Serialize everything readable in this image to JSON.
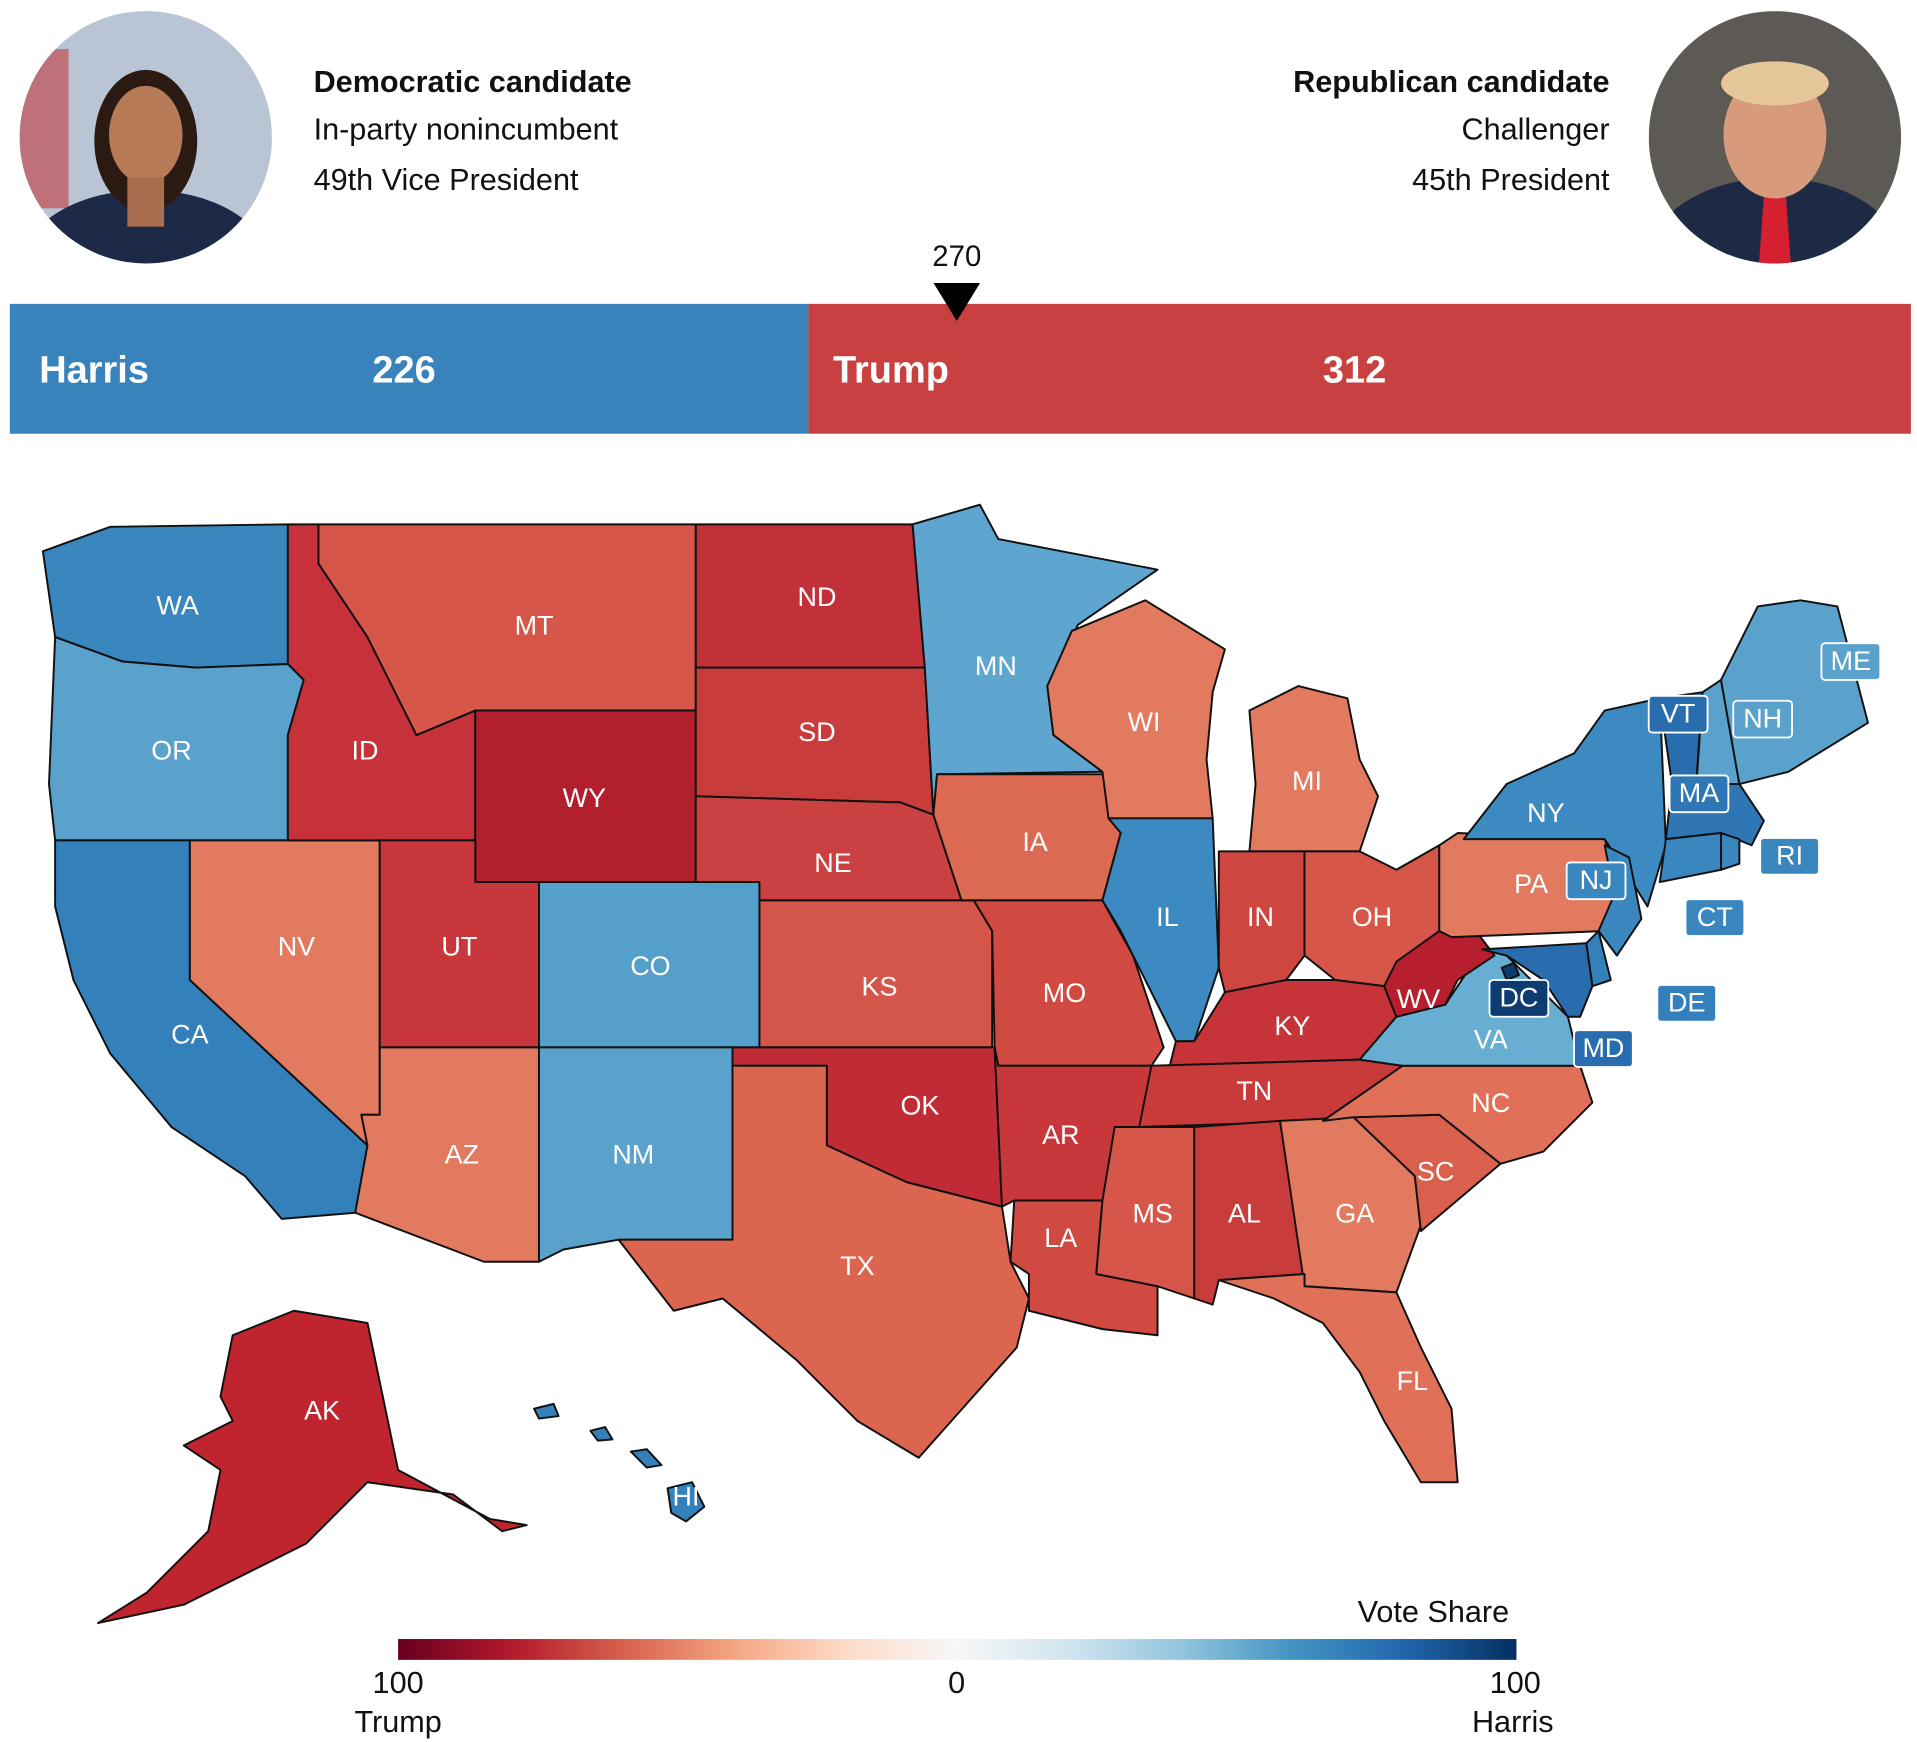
{
  "header": {
    "dem": {
      "party": "Democratic candidate",
      "status": "In-party nonincumbent",
      "office": "49th Vice President"
    },
    "rep": {
      "party": "Republican candidate",
      "status": "Challenger",
      "office": "45th President"
    }
  },
  "electoral_bar": {
    "threshold_label": "270",
    "threshold": 270,
    "total": 538,
    "dem": {
      "name": "Harris",
      "votes": "226",
      "value": 226,
      "color": "#3983bd"
    },
    "rep": {
      "name": "Trump",
      "votes": "312",
      "value": 312,
      "color": "#c84040"
    }
  },
  "legend": {
    "title": "Vote Share",
    "left_value": "100",
    "mid_value": "0",
    "right_value": "100",
    "left_name": "Trump",
    "right_name": "Harris",
    "stops": [
      "#67001f",
      "#b2182b",
      "#d6604d",
      "#f4a582",
      "#fddbc7",
      "#f7f7f7",
      "#d1e5f0",
      "#92c5de",
      "#4393c3",
      "#2166ac",
      "#053061"
    ]
  },
  "states": [
    {
      "abbr": "WA",
      "color": "#3a86bf"
    },
    {
      "abbr": "OR",
      "color": "#5aa2cc"
    },
    {
      "abbr": "CA",
      "color": "#3480bb"
    },
    {
      "abbr": "NV",
      "color": "#e27a60"
    },
    {
      "abbr": "ID",
      "color": "#c7323a"
    },
    {
      "abbr": "MT",
      "color": "#d6574a"
    },
    {
      "abbr": "WY",
      "color": "#b21f2d"
    },
    {
      "abbr": "UT",
      "color": "#c7373b"
    },
    {
      "abbr": "CO",
      "color": "#559fcb"
    },
    {
      "abbr": "AZ",
      "color": "#e27a60"
    },
    {
      "abbr": "NM",
      "color": "#5aa2cc"
    },
    {
      "abbr": "ND",
      "color": "#c2303a"
    },
    {
      "abbr": "SD",
      "color": "#c93c3c"
    },
    {
      "abbr": "NE",
      "color": "#cb4040"
    },
    {
      "abbr": "KS",
      "color": "#d4554a"
    },
    {
      "abbr": "OK",
      "color": "#c02b35"
    },
    {
      "abbr": "TX",
      "color": "#dc654f"
    },
    {
      "abbr": "MN",
      "color": "#5ea6cf"
    },
    {
      "abbr": "IA",
      "color": "#dc6a52"
    },
    {
      "abbr": "MO",
      "color": "#d04a42"
    },
    {
      "abbr": "AR",
      "color": "#c8383b"
    },
    {
      "abbr": "LA",
      "color": "#d04a42"
    },
    {
      "abbr": "WI",
      "color": "#e27a60"
    },
    {
      "abbr": "IL",
      "color": "#3d8ac2"
    },
    {
      "abbr": "MI",
      "color": "#e27a60"
    },
    {
      "abbr": "IN",
      "color": "#cf4641"
    },
    {
      "abbr": "OH",
      "color": "#d6574a"
    },
    {
      "abbr": "KY",
      "color": "#c63338"
    },
    {
      "abbr": "TN",
      "color": "#c93a3b"
    },
    {
      "abbr": "MS",
      "color": "#d6574a"
    },
    {
      "abbr": "AL",
      "color": "#c93c3c"
    },
    {
      "abbr": "GA",
      "color": "#e27a60"
    },
    {
      "abbr": "FL",
      "color": "#e07158"
    },
    {
      "abbr": "SC",
      "color": "#d9604c"
    },
    {
      "abbr": "NC",
      "color": "#e07158"
    },
    {
      "abbr": "VA",
      "color": "#68aed3"
    },
    {
      "abbr": "WV",
      "color": "#b71f2e"
    },
    {
      "abbr": "PA",
      "color": "#e27a60"
    },
    {
      "abbr": "NY",
      "color": "#3d8ac2"
    },
    {
      "abbr": "VT",
      "color": "#2a6dae"
    },
    {
      "abbr": "NH",
      "color": "#5aa2cc"
    },
    {
      "abbr": "ME",
      "color": "#5aa2cc"
    },
    {
      "abbr": "MA",
      "color": "#2f76b5"
    },
    {
      "abbr": "CT",
      "color": "#3a86bf"
    },
    {
      "abbr": "RI",
      "color": "#3a86bf"
    },
    {
      "abbr": "NJ",
      "color": "#3a86bf"
    },
    {
      "abbr": "DE",
      "color": "#3480bb"
    },
    {
      "abbr": "MD",
      "color": "#2a6dae"
    },
    {
      "abbr": "DC",
      "color": "#0d3c73"
    },
    {
      "abbr": "AK",
      "color": "#c0252f"
    },
    {
      "abbr": "HI",
      "color": "#3480bb"
    }
  ]
}
